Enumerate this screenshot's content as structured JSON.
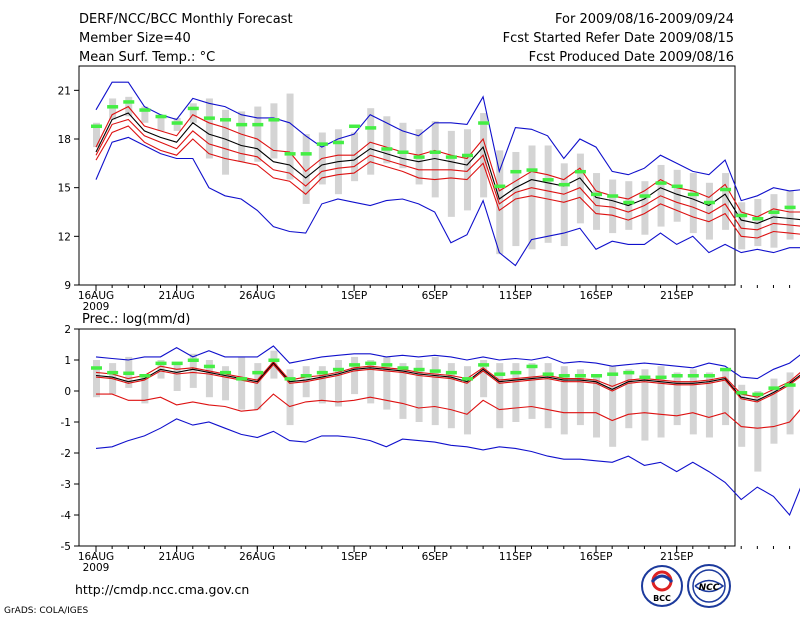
{
  "header": {
    "left": [
      "DERF/NCC/BCC Monthly Forecast",
      "Member Size=40",
      "Mean Surf. Temp.: °C"
    ],
    "right": [
      "For 2009/08/16-2009/09/24",
      "Fcst Started Refer Date 2009/08/15",
      "Fcst Produced Date 2009/08/16"
    ]
  },
  "footer": {
    "url": "http://cmdp.ncc.cma.gov.cn",
    "credit": "GrADS: COLA/IGES",
    "logo_bcc": "BCC",
    "logo_ncc": "NCC"
  },
  "colors": {
    "mean": "#000000",
    "spread": "#dd1111",
    "envelope": "#1010cc",
    "median": "#44ee44",
    "box": "#d4d4d4"
  },
  "chart_data": [
    {
      "type": "line",
      "title": "Mean Surf. Temp.: °C",
      "x_label_days": [
        1,
        6,
        11,
        16,
        21,
        26,
        31,
        36,
        41,
        46,
        51,
        56
      ],
      "x_labels": [
        "16AUG",
        "21AUG",
        "26AUG",
        "1SEP",
        "6SEP",
        "11SEP",
        "16SEP",
        "21SEP"
      ],
      "x_labels_day": [
        1,
        6,
        11,
        17,
        22,
        27,
        32,
        37
      ],
      "x_sublabel": "2009",
      "x_range": [
        0,
        41
      ],
      "yticks": [
        9,
        12,
        15,
        18,
        21
      ],
      "ylim": [
        9,
        22.5
      ],
      "series": [
        {
          "name": "max",
          "values": [
            15.5,
            17.8,
            18.1,
            17.6,
            17.1,
            16.8,
            16.8,
            15,
            14.5,
            14.3,
            13.6,
            12.6,
            12.3,
            12.2,
            14,
            14.3,
            14.1,
            13.9,
            14.2,
            14.3,
            14,
            13.5,
            11.6,
            12.1,
            14.2,
            11,
            10.2,
            11.8,
            12,
            12.2,
            12.5,
            11.2,
            11.7,
            11.5,
            11.5,
            12.2,
            11.5,
            12,
            11,
            11.5,
            11,
            11.2,
            11,
            11.3,
            11.3
          ]
        },
        {
          "name": "upper",
          "values": [
            19.8,
            21.5,
            21.5,
            20,
            19.5,
            19.2,
            20.5,
            20.2,
            20,
            19.5,
            19.3,
            19.3,
            19,
            18.2,
            17.5,
            18,
            18.3,
            19.5,
            19,
            18.5,
            18.2,
            19,
            19,
            18.9,
            20.6,
            16,
            18.7,
            18.6,
            18.2,
            16.8,
            18,
            17.5,
            16,
            15.8,
            16.2,
            17,
            16.5,
            16,
            15.8,
            16.7,
            14.2,
            14.5,
            15,
            14.8,
            14.9
          ]
        },
        {
          "name": "mean_hi",
          "values": [
            17.5,
            19.5,
            20,
            18.8,
            18.5,
            18.2,
            19.5,
            19,
            18.7,
            18.3,
            18,
            17.3,
            17.2,
            16,
            16.8,
            17,
            17,
            17.8,
            17.5,
            17.2,
            17,
            17.3,
            17,
            16.8,
            18,
            14.8,
            15.4,
            16,
            15.8,
            15.5,
            16.2,
            14.8,
            14.5,
            14.3,
            14.8,
            15.5,
            15,
            14.8,
            14.4,
            15.2,
            13.5,
            13.2,
            13.7,
            13.5,
            13.5
          ]
        },
        {
          "name": "mean",
          "values": [
            17.2,
            19.2,
            19.6,
            18.5,
            18.1,
            17.8,
            19,
            18.3,
            18,
            17.6,
            17.4,
            16.6,
            16.4,
            15.6,
            16.4,
            16.6,
            16.7,
            17.4,
            17.1,
            16.8,
            16.6,
            16.8,
            16.6,
            16.4,
            17.5,
            14.3,
            15,
            15.5,
            15.3,
            15.1,
            15.6,
            14.4,
            14.2,
            13.9,
            14.3,
            15,
            14.6,
            14.3,
            13.9,
            14.6,
            13,
            12.8,
            13.2,
            13.1,
            13
          ]
        },
        {
          "name": "mean_lo",
          "values": [
            17,
            18.9,
            19.2,
            18.2,
            17.8,
            17.4,
            18.5,
            17.7,
            17.4,
            17.1,
            16.9,
            16.1,
            15.9,
            15.1,
            16,
            16.2,
            16.3,
            17,
            16.7,
            16.4,
            16.1,
            16.1,
            16.1,
            16,
            17,
            14,
            14.7,
            15,
            14.8,
            14.6,
            15,
            13.9,
            13.8,
            13.5,
            13.9,
            14.5,
            14.1,
            13.8,
            13.4,
            14,
            12.5,
            12.4,
            12.8,
            12.7,
            12.6
          ]
        },
        {
          "name": "spread_lo",
          "values": [
            16.7,
            18.4,
            18.8,
            17.8,
            17.3,
            17,
            18,
            17.1,
            16.8,
            16.6,
            16.4,
            15.6,
            15.4,
            14.6,
            15.6,
            15.8,
            15.9,
            16.6,
            16.3,
            16,
            15.6,
            15.5,
            15.6,
            15.5,
            16.5,
            13.6,
            14.3,
            14.5,
            14.3,
            14.1,
            14.4,
            13.4,
            13.3,
            13,
            13.4,
            14,
            13.6,
            13.2,
            12.9,
            13.4,
            12,
            11.9,
            12.3,
            12.2,
            12.1
          ]
        }
      ],
      "boxes": {
        "lo": [
          17.5,
          19.2,
          19.4,
          19,
          18.5,
          18.5,
          19,
          16.8,
          15.8,
          16.6,
          16.6,
          16.8,
          15.5,
          14,
          15.2,
          14.6,
          15.4,
          15.8,
          16.5,
          16.2,
          15.2,
          14.4,
          13.2,
          13.6,
          14.4,
          10.9,
          11.4,
          11.2,
          11.6,
          11.4,
          12.8,
          12.4,
          12.2,
          12.4,
          12.1,
          12.6,
          12.9,
          12.2,
          11.8,
          12.4,
          11.2,
          11.4,
          11.3,
          11.8,
          11.4
        ],
        "hi": [
          19,
          20.5,
          20.6,
          20,
          19.5,
          19.3,
          20.2,
          20.5,
          19.8,
          19.7,
          20,
          20.2,
          20.8,
          18.3,
          18.4,
          18.6,
          18.4,
          19.9,
          19.4,
          19,
          18.6,
          19.1,
          18.5,
          18.6,
          19.6,
          17.3,
          17.2,
          17.6,
          17.6,
          16.5,
          17.1,
          15.9,
          15.5,
          15.4,
          15.4,
          16.4,
          16.1,
          15.9,
          15.3,
          15.9,
          14.1,
          14.3,
          14.6,
          14.8,
          15.2
        ],
        "median": [
          18.8,
          20,
          20.3,
          19.8,
          19.4,
          19,
          19.9,
          19.3,
          19.2,
          18.9,
          18.9,
          19.2,
          17.1,
          17.1,
          17.7,
          17.8,
          18.8,
          18.7,
          17.4,
          17.2,
          16.9,
          17.2,
          16.9,
          17,
          19,
          15.1,
          16,
          16.1,
          15.5,
          15.2,
          16,
          14.6,
          14.5,
          14.1,
          14.5,
          15.3,
          15.1,
          14.6,
          14.1,
          14.9,
          13.3,
          13.1,
          13.5,
          13.8,
          13.9
        ]
      }
    },
    {
      "type": "line",
      "title": "Prec.: log(mm/d)",
      "x_labels": [
        "16AUG",
        "21AUG",
        "26AUG",
        "1SEP",
        "6SEP",
        "11SEP",
        "16SEP",
        "21SEP"
      ],
      "x_labels_day": [
        1,
        6,
        11,
        17,
        22,
        27,
        32,
        37
      ],
      "x_sublabel": "2009",
      "x_range": [
        0,
        41
      ],
      "yticks": [
        -5,
        -4,
        -3,
        -2,
        -1,
        0,
        1,
        2
      ],
      "ylim": [
        -5,
        2
      ],
      "series": [
        {
          "name": "min",
          "values": [
            -1.85,
            -1.8,
            -1.6,
            -1.45,
            -1.2,
            -0.9,
            -1.1,
            -1,
            -1.2,
            -1.4,
            -1.5,
            -1.3,
            -1.6,
            -1.65,
            -1.45,
            -1.45,
            -1.5,
            -1.6,
            -1.8,
            -1.55,
            -1.6,
            -1.65,
            -1.75,
            -1.8,
            -1.9,
            -1.8,
            -1.85,
            -1.95,
            -2.1,
            -2.2,
            -2.2,
            -2.25,
            -2.3,
            -2.1,
            -2.4,
            -2.3,
            -2.6,
            -2.3,
            -2.6,
            -2.95,
            -3.5,
            -3.1,
            -3.4,
            -4,
            -2.7
          ]
        },
        {
          "name": "upper",
          "values": [
            1.1,
            1.05,
            1,
            1.1,
            1.1,
            1.4,
            1.1,
            1.3,
            1.1,
            1.1,
            1.1,
            1.45,
            0.9,
            1,
            1.1,
            1.15,
            1.2,
            1.2,
            1.1,
            1.15,
            1.1,
            1.15,
            1.1,
            1,
            1.1,
            1,
            1.05,
            1,
            1.1,
            0.9,
            0.95,
            0.9,
            0.8,
            0.85,
            0.9,
            0.85,
            0.8,
            0.75,
            0.9,
            0.8,
            0.45,
            0.4,
            0.7,
            0.9,
            1.3
          ]
        },
        {
          "name": "spread_hi",
          "values": [
            0.6,
            0.55,
            0.4,
            0.5,
            0.8,
            0.7,
            0.75,
            0.65,
            0.55,
            0.45,
            0.35,
            0.95,
            0.35,
            0.45,
            0.5,
            0.6,
            0.75,
            0.8,
            0.75,
            0.7,
            0.6,
            0.55,
            0.5,
            0.4,
            0.75,
            0.35,
            0.4,
            0.45,
            0.5,
            0.4,
            0.4,
            0.35,
            0.15,
            0.35,
            0.4,
            0.35,
            0.3,
            0.3,
            0.35,
            0.45,
            -0.1,
            -0.2,
            0.05,
            0.3,
            0.75
          ]
        },
        {
          "name": "mean",
          "values": [
            0.5,
            0.45,
            0.3,
            0.4,
            0.7,
            0.6,
            0.7,
            0.6,
            0.5,
            0.4,
            0.3,
            0.9,
            0.3,
            0.35,
            0.45,
            0.55,
            0.7,
            0.75,
            0.7,
            0.65,
            0.55,
            0.5,
            0.45,
            0.3,
            0.7,
            0.3,
            0.35,
            0.4,
            0.45,
            0.35,
            0.35,
            0.3,
            0.05,
            0.3,
            0.35,
            0.3,
            0.25,
            0.25,
            0.3,
            0.4,
            -0.2,
            -0.3,
            -0.05,
            0.25,
            0.65
          ]
        },
        {
          "name": "spread_lo",
          "values": [
            0.45,
            0.4,
            0.25,
            0.35,
            0.65,
            0.55,
            0.6,
            0.55,
            0.45,
            0.35,
            0.25,
            0.85,
            0.25,
            0.3,
            0.4,
            0.5,
            0.65,
            0.7,
            0.65,
            0.6,
            0.5,
            0.45,
            0.4,
            0.25,
            0.65,
            0.25,
            0.3,
            0.35,
            0.4,
            0.3,
            0.3,
            0.25,
            0,
            0.25,
            0.3,
            0.25,
            0.2,
            0.2,
            0.25,
            0.35,
            -0.25,
            -0.35,
            -0.1,
            0.2,
            0.6
          ]
        },
        {
          "name": "lower",
          "values": [
            -0.1,
            -0.1,
            -0.3,
            -0.3,
            -0.2,
            -0.45,
            -0.35,
            -0.45,
            -0.5,
            -0.65,
            -0.6,
            -0.1,
            -0.5,
            -0.35,
            -0.3,
            -0.35,
            -0.3,
            -0.2,
            -0.3,
            -0.4,
            -0.55,
            -0.5,
            -0.6,
            -0.75,
            -0.3,
            -0.6,
            -0.55,
            -0.5,
            -0.6,
            -0.7,
            -0.7,
            -0.7,
            -0.95,
            -0.75,
            -0.7,
            -0.75,
            -0.8,
            -0.7,
            -0.85,
            -0.7,
            -1.15,
            -1.2,
            -1.15,
            -1,
            -0.4
          ]
        }
      ],
      "boxes": {
        "lo": [
          -0.2,
          -0.1,
          0.1,
          -0.4,
          0.4,
          0,
          0.1,
          -0.2,
          -0.3,
          -0.6,
          -0.6,
          0.4,
          -1.1,
          -0.2,
          -0.4,
          -0.5,
          -0.1,
          -0.4,
          -0.6,
          -0.9,
          -1,
          -1.1,
          -1.2,
          -1.4,
          -0.2,
          -1.2,
          -1,
          -0.9,
          -1.2,
          -1.4,
          -1.1,
          -1.5,
          -1.8,
          -1.2,
          -1.6,
          -1.5,
          -1.1,
          -1.4,
          -1.5,
          -1.1,
          -1.8,
          -2.6,
          -1.7,
          -1.4,
          -1.3
        ],
        "hi": [
          1,
          0.9,
          1.1,
          0.5,
          1,
          0.9,
          1.2,
          1,
          0.8,
          1.1,
          0.9,
          1.3,
          0.7,
          0.8,
          0.8,
          1,
          1.1,
          1,
          1.1,
          0.9,
          1,
          1.1,
          0.9,
          0.8,
          1,
          0.9,
          0.9,
          0.9,
          0.9,
          0.8,
          0.7,
          0.5,
          0.8,
          0.7,
          0.7,
          0.8,
          0.6,
          0.7,
          0.6,
          0.7,
          0.2,
          0,
          0.4,
          0.6,
          0.6
        ],
        "median": [
          0.75,
          0.6,
          0.58,
          0.5,
          0.9,
          0.9,
          1,
          0.8,
          0.6,
          0.4,
          0.6,
          1,
          0.4,
          0.5,
          0.6,
          0.7,
          0.85,
          0.9,
          0.85,
          0.75,
          0.7,
          0.65,
          0.6,
          0.4,
          0.85,
          0.55,
          0.6,
          0.8,
          0.55,
          0.5,
          0.5,
          0.5,
          0.55,
          0.6,
          0.45,
          0.45,
          0.5,
          0.5,
          0.5,
          0.7,
          -0.05,
          -0.1,
          0.1,
          0.2,
          0.6
        ]
      }
    }
  ]
}
